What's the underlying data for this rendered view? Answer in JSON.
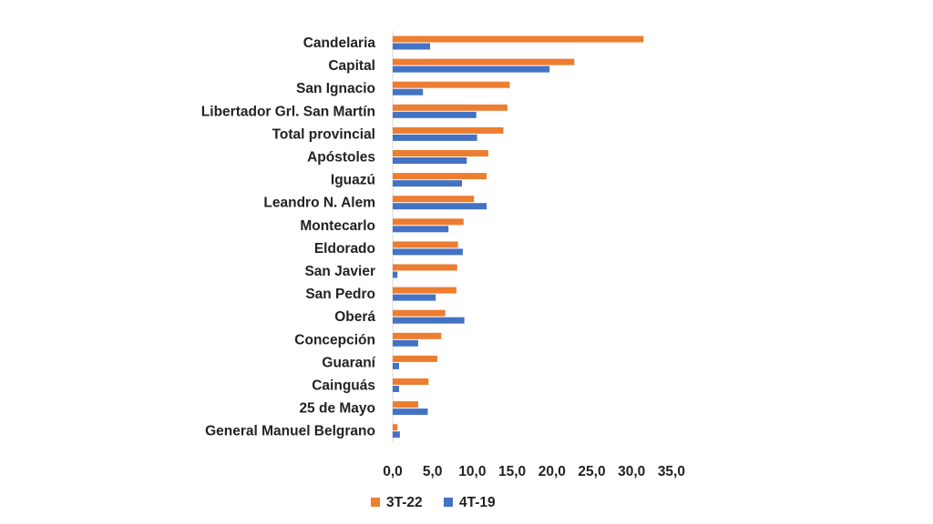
{
  "chart_data": {
    "type": "bar",
    "orientation": "horizontal",
    "categories": [
      "Candelaria",
      "Capital",
      "San Ignacio",
      "Libertador Grl. San Martín",
      "Total provincial",
      "Apóstoles",
      "Iguazú",
      "Leandro N. Alem",
      "Montecarlo",
      "Eldorado",
      "San Javier",
      "San Pedro",
      "Oberá",
      "Concepción",
      "Guaraní",
      "Cainguás",
      "25 de Mayo",
      "General Manuel Belgrano"
    ],
    "series": [
      {
        "name": "3T-22",
        "color": "#ED7D31",
        "values": [
          31.5,
          22.8,
          14.7,
          14.4,
          13.9,
          12.0,
          11.8,
          10.2,
          8.9,
          8.2,
          8.1,
          8.0,
          6.6,
          6.1,
          5.6,
          4.5,
          3.2,
          0.6
        ]
      },
      {
        "name": "4T-19",
        "color": "#4472C4",
        "values": [
          4.7,
          19.7,
          3.8,
          10.5,
          10.6,
          9.3,
          8.7,
          11.8,
          7.0,
          8.8,
          0.6,
          5.4,
          9.0,
          3.2,
          0.8,
          0.8,
          4.4,
          0.9
        ]
      }
    ],
    "xlim": [
      0,
      35
    ],
    "xticks": [
      "0,0",
      "5,0",
      "10,0",
      "15,0",
      "20,0",
      "25,0",
      "30,0",
      "35,0"
    ],
    "xtick_values": [
      0,
      5,
      10,
      15,
      20,
      25,
      30,
      35
    ],
    "legend_position": "bottom-left",
    "grid": false
  }
}
